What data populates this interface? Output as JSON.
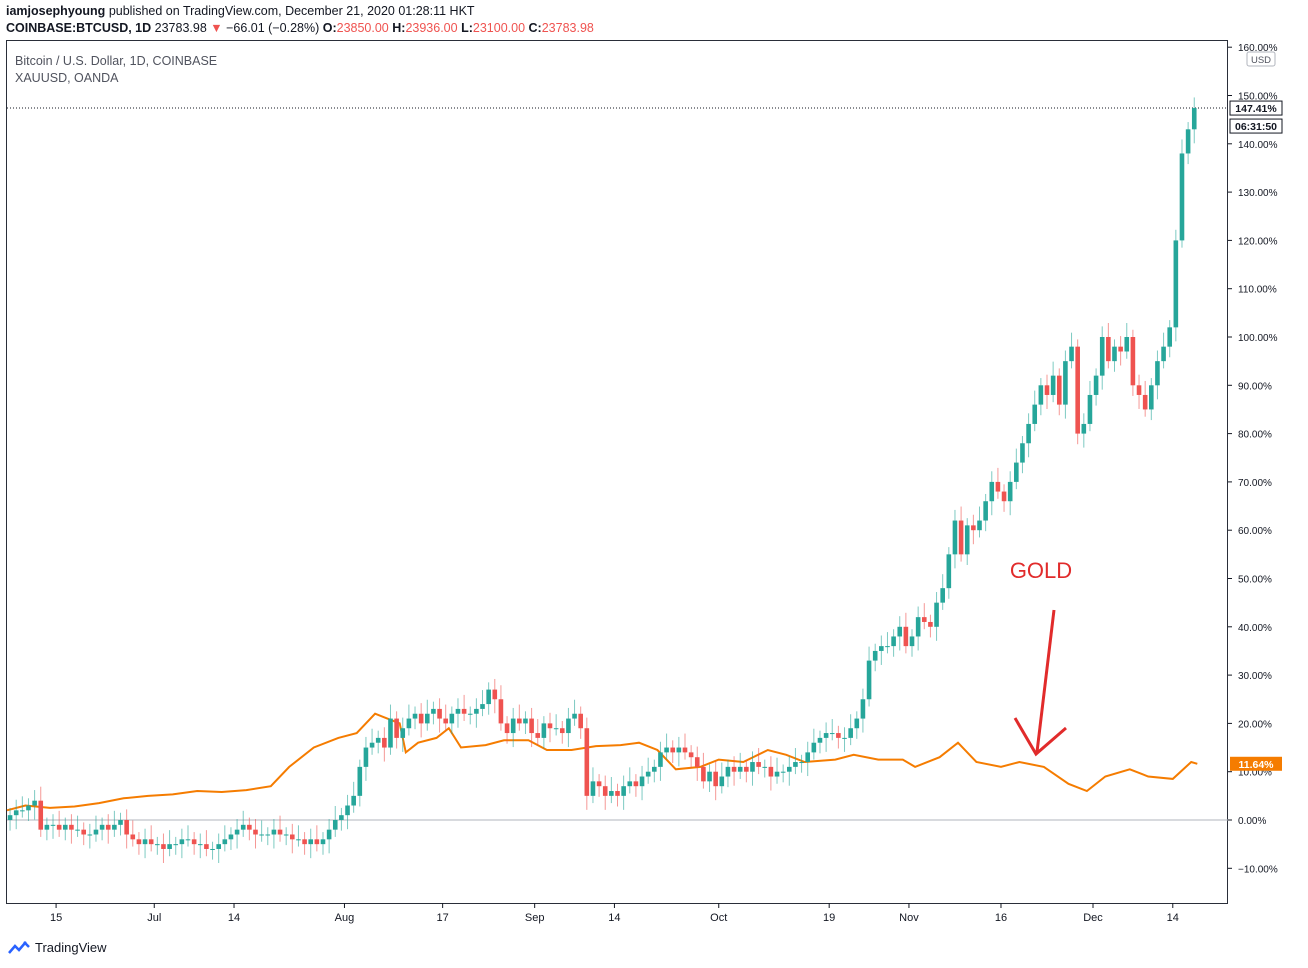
{
  "header": {
    "user": "iamjosephyoung",
    "published": "published on TradingView.com, December 21, 2020 01:28:11 HKT",
    "symbol": "COINBASE:BTCUSD, 1D",
    "last": "23783.98",
    "change_arrow": "▼",
    "change": "−66.01 (−0.28%)",
    "o_label": "O:",
    "o": "23850.00",
    "h_label": "H:",
    "h": "23936.00",
    "l_label": "L:",
    "l": "23100.00",
    "c_label": "C:",
    "c": "23783.98"
  },
  "legend": {
    "line1": "Bitcoin / U.S. Dollar, 1D, COINBASE",
    "line2": "XAUUSD, OANDA"
  },
  "footer": {
    "brand": "TradingView",
    "logo_icon": "tradingview-logo-icon"
  },
  "chart_data": {
    "type": "candlestick-compare",
    "yunit": "%",
    "currency_badge": "USD",
    "ylim": [
      -18,
      160
    ],
    "yticks": [
      -10,
      0,
      10,
      20,
      30,
      40,
      50,
      60,
      70,
      80,
      90,
      100,
      110,
      120,
      130,
      140,
      150,
      160
    ],
    "ytick_labels": [
      "−10.00%",
      "0.00%",
      "10.00%",
      "20.00%",
      "30.00%",
      "40.00%",
      "50.00%",
      "60.00%",
      "70.00%",
      "80.00%",
      "90.00%",
      "100.00%",
      "110.00%",
      "120.00%",
      "130.00%",
      "140.00%",
      "150.00%",
      "160.00%"
    ],
    "x_domain": [
      "2020-06-07",
      "2020-12-23"
    ],
    "xticks": [
      {
        "date": "2020-06-15",
        "label": "15"
      },
      {
        "date": "2020-07-01",
        "label": "Jul"
      },
      {
        "date": "2020-07-14",
        "label": "14"
      },
      {
        "date": "2020-08-01",
        "label": "Aug"
      },
      {
        "date": "2020-08-17",
        "label": "17"
      },
      {
        "date": "2020-09-01",
        "label": "Sep"
      },
      {
        "date": "2020-09-14",
        "label": "14"
      },
      {
        "date": "2020-10-01",
        "label": "Oct"
      },
      {
        "date": "2020-10-19",
        "label": "19"
      },
      {
        "date": "2020-11-01",
        "label": "Nov"
      },
      {
        "date": "2020-11-16",
        "label": "16"
      },
      {
        "date": "2020-12-01",
        "label": "Dec"
      },
      {
        "date": "2020-12-14",
        "label": "14"
      }
    ],
    "btc_last_label": "147.41%",
    "btc_countdown": "06:31:50",
    "gold_last_label": "11.64%",
    "btc_series": {
      "start_date": "2020-06-07",
      "close": [
        1,
        2,
        2,
        3,
        4,
        -2,
        -1,
        -1,
        -2,
        -1,
        -2,
        -2,
        -3,
        -3,
        -2,
        -1,
        -2,
        -1,
        0,
        -3,
        -4,
        -5,
        -4,
        -5,
        -5,
        -6,
        -5,
        -5,
        -4,
        -4,
        -5,
        -5,
        -6,
        -6,
        -5,
        -4,
        -3,
        -2,
        -1,
        -2,
        -3,
        -3,
        -3,
        -2,
        -3,
        -3,
        -4,
        -4,
        -5,
        -4,
        -5,
        -4,
        -2,
        0,
        1,
        3,
        5,
        11,
        15,
        16,
        17,
        15,
        21,
        17,
        19,
        21,
        22,
        20,
        22,
        23,
        21,
        20,
        22,
        23,
        22,
        22,
        23,
        24,
        27,
        25,
        20,
        18,
        21,
        20,
        21,
        18,
        17,
        20,
        19,
        19,
        18,
        21,
        22,
        19,
        5,
        8,
        7,
        5,
        6,
        5,
        7,
        8,
        7,
        9,
        10,
        11,
        14,
        15,
        14,
        15,
        14,
        13,
        11,
        8,
        10,
        7,
        9,
        11,
        10,
        11,
        10,
        12,
        11,
        11,
        9,
        10,
        10,
        11,
        12,
        12,
        14,
        16,
        17,
        18,
        18,
        17,
        17,
        19,
        21,
        25,
        33,
        35,
        36,
        36,
        38,
        40,
        36,
        38,
        42,
        41,
        40,
        45,
        48,
        55,
        62,
        55,
        61,
        60,
        62,
        66,
        70,
        68,
        66,
        70,
        74,
        78,
        82,
        86,
        90,
        88,
        92,
        86,
        95,
        98,
        80,
        82,
        88,
        92,
        100,
        95,
        98,
        97,
        100,
        90,
        88,
        85,
        90,
        95,
        98,
        102,
        120,
        138,
        143,
        147.4
      ]
    },
    "gold_series": {
      "points": [
        {
          "date": "2020-06-07",
          "value": 2
        },
        {
          "date": "2020-06-10",
          "value": 3
        },
        {
          "date": "2020-06-14",
          "value": 2.5
        },
        {
          "date": "2020-06-18",
          "value": 2.8
        },
        {
          "date": "2020-06-22",
          "value": 3.5
        },
        {
          "date": "2020-06-26",
          "value": 4.5
        },
        {
          "date": "2020-06-30",
          "value": 5
        },
        {
          "date": "2020-07-04",
          "value": 5.3
        },
        {
          "date": "2020-07-08",
          "value": 6
        },
        {
          "date": "2020-07-12",
          "value": 5.8
        },
        {
          "date": "2020-07-16",
          "value": 6.2
        },
        {
          "date": "2020-07-20",
          "value": 7
        },
        {
          "date": "2020-07-23",
          "value": 11
        },
        {
          "date": "2020-07-27",
          "value": 15
        },
        {
          "date": "2020-07-31",
          "value": 17
        },
        {
          "date": "2020-08-03",
          "value": 18
        },
        {
          "date": "2020-08-06",
          "value": 22
        },
        {
          "date": "2020-08-10",
          "value": 20
        },
        {
          "date": "2020-08-11",
          "value": 14
        },
        {
          "date": "2020-08-13",
          "value": 16
        },
        {
          "date": "2020-08-16",
          "value": 17
        },
        {
          "date": "2020-08-18",
          "value": 19
        },
        {
          "date": "2020-08-20",
          "value": 15
        },
        {
          "date": "2020-08-24",
          "value": 15.5
        },
        {
          "date": "2020-08-27",
          "value": 16.5
        },
        {
          "date": "2020-08-31",
          "value": 16.5
        },
        {
          "date": "2020-09-03",
          "value": 14.5
        },
        {
          "date": "2020-09-07",
          "value": 14.5
        },
        {
          "date": "2020-09-11",
          "value": 15.3
        },
        {
          "date": "2020-09-15",
          "value": 15.5
        },
        {
          "date": "2020-09-18",
          "value": 16
        },
        {
          "date": "2020-09-21",
          "value": 14.5
        },
        {
          "date": "2020-09-24",
          "value": 10.5
        },
        {
          "date": "2020-09-28",
          "value": 11
        },
        {
          "date": "2020-10-01",
          "value": 12.5
        },
        {
          "date": "2020-10-05",
          "value": 12
        },
        {
          "date": "2020-10-09",
          "value": 14.5
        },
        {
          "date": "2020-10-12",
          "value": 13.5
        },
        {
          "date": "2020-10-15",
          "value": 12
        },
        {
          "date": "2020-10-20",
          "value": 12.5
        },
        {
          "date": "2020-10-23",
          "value": 13.5
        },
        {
          "date": "2020-10-27",
          "value": 12.5
        },
        {
          "date": "2020-10-31",
          "value": 12.5
        },
        {
          "date": "2020-11-02",
          "value": 11
        },
        {
          "date": "2020-11-06",
          "value": 13
        },
        {
          "date": "2020-11-09",
          "value": 16
        },
        {
          "date": "2020-11-12",
          "value": 12
        },
        {
          "date": "2020-11-16",
          "value": 11
        },
        {
          "date": "2020-11-19",
          "value": 12
        },
        {
          "date": "2020-11-23",
          "value": 11
        },
        {
          "date": "2020-11-27",
          "value": 7.5
        },
        {
          "date": "2020-11-30",
          "value": 6
        },
        {
          "date": "2020-12-03",
          "value": 9
        },
        {
          "date": "2020-12-07",
          "value": 10.5
        },
        {
          "date": "2020-12-10",
          "value": 9
        },
        {
          "date": "2020-12-14",
          "value": 8.5
        },
        {
          "date": "2020-12-17",
          "value": 12
        },
        {
          "date": "2020-12-18",
          "value": 11.64
        }
      ]
    },
    "annotation": {
      "text": "GOLD",
      "color": "#e12b2b"
    },
    "colors": {
      "up": "#26a69a",
      "down": "#ef5350",
      "gold": "#f57c00",
      "grid": "#b2b5be",
      "text": "#131722"
    }
  }
}
